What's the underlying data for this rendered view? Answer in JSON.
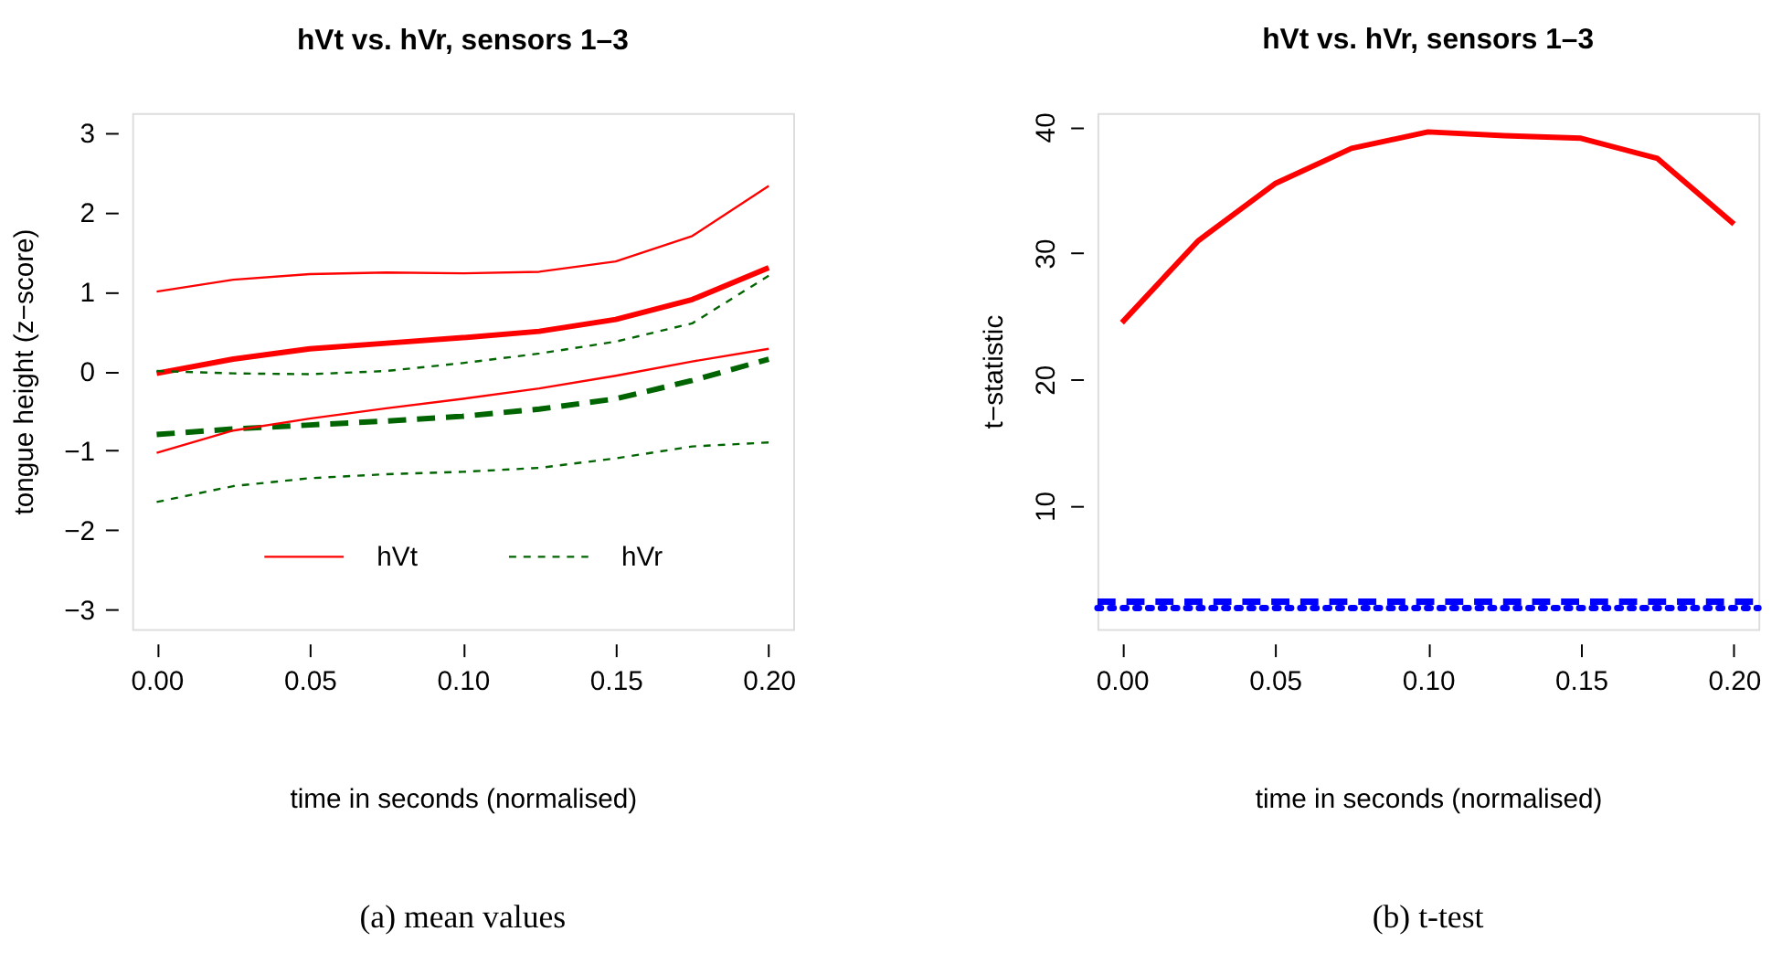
{
  "chart_data": [
    {
      "type": "line",
      "title": "hVt vs. hVr, sensors 1–3",
      "xlabel": "time in seconds (normalised)",
      "ylabel": "tongue height (z−score)",
      "x": [
        0,
        0.025,
        0.05,
        0.075,
        0.1,
        0.125,
        0.15,
        0.175,
        0.2
      ],
      "series": [
        {
          "name": "hVt",
          "color": "#ff0000",
          "line_style": "solid",
          "values": [
            -0.03,
            0.15,
            0.28,
            0.35,
            0.42,
            0.5,
            0.65,
            0.9,
            1.3
          ]
        },
        {
          "name": "hVr",
          "color": "#006400",
          "line_style": "dashed",
          "values": [
            -0.8,
            -0.73,
            -0.68,
            -0.63,
            -0.57,
            -0.48,
            -0.35,
            -0.12,
            0.15
          ]
        },
        {
          "color": "#ff0000",
          "line_style": "solid",
          "values": [
            1.0,
            1.15,
            1.22,
            1.24,
            1.23,
            1.25,
            1.38,
            1.7,
            2.33
          ]
        },
        {
          "color": "#ff0000",
          "line_style": "solid",
          "values": [
            -1.03,
            -0.75,
            -0.6,
            -0.47,
            -0.35,
            -0.22,
            -0.06,
            0.12,
            0.28
          ]
        },
        {
          "color": "#006400",
          "line_style": "dashed",
          "values": [
            0.0,
            -0.03,
            -0.04,
            0.0,
            0.1,
            0.22,
            0.37,
            0.6,
            1.2
          ]
        },
        {
          "color": "#006400",
          "line_style": "dashed",
          "values": [
            -1.65,
            -1.45,
            -1.35,
            -1.3,
            -1.27,
            -1.22,
            -1.1,
            -0.95,
            -0.9
          ]
        }
      ],
      "xlim": [
        -0.008,
        0.208
      ],
      "xticks": [
        {
          "value": 0,
          "label": "0.00"
        },
        {
          "value": 0.05,
          "label": "0.05"
        },
        {
          "value": 0.1,
          "label": "0.10"
        },
        {
          "value": 0.15,
          "label": "0.15"
        },
        {
          "value": 0.2,
          "label": "0.20"
        }
      ],
      "ylim": [
        -3.25,
        3.25
      ],
      "yticks": [
        -3,
        -2,
        -1,
        0,
        1,
        2,
        3
      ],
      "grid": false,
      "legend": "bottom",
      "marker": "none",
      "annotations": [
        "(a) mean values"
      ]
    },
    {
      "type": "line",
      "title": "hVt vs. hVr, sensors 1–3",
      "xlabel": "time in seconds (normalised)",
      "ylabel": "t−statistic",
      "x": [
        0,
        0.025,
        0.05,
        0.075,
        0.1,
        0.125,
        0.15,
        0.175,
        0.2
      ],
      "series": [
        {
          "color": "#ff0000",
          "line_style": "solid",
          "values": [
            24.5,
            31,
            35.5,
            38.3,
            39.6,
            39.3,
            39.1,
            37.5,
            32.3
          ]
        }
      ],
      "ref_lines": [
        {
          "axis": "y",
          "value": 2.4,
          "color": "#0000ff",
          "line_style": "dashed"
        },
        {
          "axis": "y",
          "value": 1.9,
          "color": "#0000ff",
          "line_style": "dotted"
        }
      ],
      "xlim": [
        -0.008,
        0.208
      ],
      "xticks": [
        {
          "value": 0,
          "label": "0.00"
        },
        {
          "value": 0.05,
          "label": "0.05"
        },
        {
          "value": 0.1,
          "label": "0.10"
        },
        {
          "value": 0.15,
          "label": "0.15"
        },
        {
          "value": 0.2,
          "label": "0.20"
        }
      ],
      "ylim": [
        0.24,
        41.1
      ],
      "yticks": [
        10,
        20,
        30,
        40
      ],
      "grid": false,
      "legend": false,
      "marker": "none",
      "annotations": [
        "(b) t-test"
      ]
    }
  ]
}
